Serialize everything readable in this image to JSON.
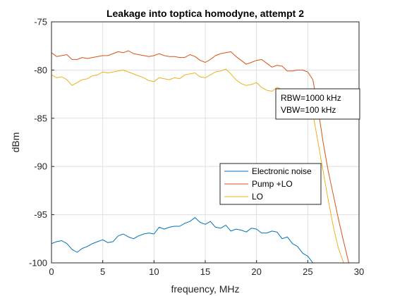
{
  "chart_data": {
    "type": "line",
    "title": "Leakage into toptica homodyne, attempt 2",
    "xlabel": "frequency, MHz",
    "ylabel": "dBm",
    "xlim": [
      0,
      30
    ],
    "ylim": [
      -100,
      -75
    ],
    "xticks": [
      0,
      5,
      10,
      15,
      20,
      25,
      30
    ],
    "yticks": [
      -100,
      -95,
      -90,
      -85,
      -80,
      -75
    ],
    "grid": true,
    "legend": {
      "placement": "center-right"
    },
    "annotation": {
      "lines": [
        "RBW=1000 kHz",
        "VBW=100 kHz"
      ]
    },
    "series": [
      {
        "name": "Electronic noise",
        "color": "#0072BD",
        "x": [
          0,
          0.5,
          1,
          1.5,
          2,
          2.5,
          3,
          3.5,
          4,
          4.5,
          5,
          5.5,
          6,
          6.5,
          7,
          7.5,
          8,
          8.5,
          9,
          9.5,
          10,
          10.5,
          11,
          11.5,
          12,
          12.5,
          13,
          13.5,
          14,
          14.5,
          15,
          15.5,
          16,
          16.5,
          17,
          17.5,
          18,
          18.5,
          19,
          19.5,
          20,
          20.5,
          21,
          21.5,
          22,
          22.5,
          23,
          23.5,
          24,
          24.5,
          25,
          25.5,
          26
        ],
        "y": [
          -98.0,
          -97.8,
          -97.7,
          -98.0,
          -98.6,
          -98.9,
          -98.5,
          -98.3,
          -98.0,
          -97.8,
          -97.6,
          -97.9,
          -97.8,
          -97.2,
          -97.0,
          -97.3,
          -97.5,
          -97.2,
          -97.0,
          -96.9,
          -97.0,
          -96.3,
          -96.5,
          -96.3,
          -96.2,
          -96.2,
          -95.9,
          -95.7,
          -95.3,
          -95.8,
          -96.0,
          -95.7,
          -96.3,
          -96.4,
          -96.1,
          -96.7,
          -96.5,
          -96.6,
          -96.8,
          -96.4,
          -96.5,
          -96.9,
          -96.9,
          -96.7,
          -96.8,
          -97.5,
          -97.3,
          -98.0,
          -98.3,
          -99.0,
          -99.3,
          -100.0,
          -100.6
        ]
      },
      {
        "name": "Pump +LO",
        "color": "#D95319",
        "x": [
          0,
          0.5,
          1,
          1.5,
          2,
          2.5,
          3,
          3.5,
          4,
          4.5,
          5,
          5.5,
          6,
          6.5,
          7,
          7.5,
          8,
          8.5,
          9,
          9.5,
          10,
          10.5,
          11,
          11.5,
          12,
          12.5,
          13,
          13.5,
          14,
          14.5,
          15,
          15.5,
          16,
          16.5,
          17,
          17.5,
          18,
          18.5,
          19,
          19.5,
          20,
          20.5,
          21,
          21.5,
          22,
          22.5,
          23,
          23.5,
          24,
          24.5,
          25,
          25.5,
          26,
          26.5,
          27,
          27.5,
          28,
          28.5,
          29
        ],
        "y": [
          -78.2,
          -78.6,
          -78.5,
          -78.4,
          -78.9,
          -78.9,
          -78.7,
          -78.8,
          -78.7,
          -78.6,
          -78.5,
          -78.5,
          -78.3,
          -78.1,
          -78.2,
          -78.0,
          -78.3,
          -78.4,
          -78.5,
          -78.6,
          -78.5,
          -78.3,
          -78.5,
          -78.6,
          -78.6,
          -78.7,
          -78.7,
          -78.4,
          -78.6,
          -79.0,
          -79.2,
          -78.9,
          -78.5,
          -78.3,
          -78.2,
          -78.1,
          -78.6,
          -79.0,
          -79.4,
          -79.2,
          -79.0,
          -78.9,
          -79.3,
          -79.7,
          -79.5,
          -79.6,
          -80.1,
          -80.1,
          -80.0,
          -80.0,
          -80.2,
          -81.0,
          -84.0,
          -87.5,
          -90.5,
          -93.0,
          -95.5,
          -97.8,
          -100.0
        ]
      },
      {
        "name": "LO",
        "color": "#EDB120",
        "x": [
          0,
          0.5,
          1,
          1.5,
          2,
          2.5,
          3,
          3.5,
          4,
          4.5,
          5,
          5.5,
          6,
          6.5,
          7,
          7.5,
          8,
          8.5,
          9,
          9.5,
          10,
          10.5,
          11,
          11.5,
          12,
          12.5,
          13,
          13.5,
          14,
          14.5,
          15,
          15.5,
          16,
          16.5,
          17,
          17.5,
          18,
          18.5,
          19,
          19.5,
          20,
          20.5,
          21,
          21.5,
          22,
          22.5,
          23,
          23.5,
          24,
          24.5,
          25,
          25.5,
          26,
          26.5,
          27,
          27.5,
          28,
          28.5
        ],
        "y": [
          -80.5,
          -80.8,
          -80.7,
          -81.0,
          -81.6,
          -81.3,
          -81.0,
          -80.9,
          -80.6,
          -80.5,
          -80.2,
          -80.3,
          -80.2,
          -80.1,
          -80.0,
          -80.2,
          -80.4,
          -80.6,
          -80.8,
          -81.1,
          -81.2,
          -80.8,
          -80.9,
          -81.0,
          -80.8,
          -80.9,
          -80.5,
          -80.4,
          -80.3,
          -80.7,
          -80.8,
          -80.5,
          -80.2,
          -80.1,
          -79.9,
          -80.4,
          -81.0,
          -81.4,
          -81.6,
          -81.5,
          -81.3,
          -81.8,
          -82.1,
          -82.2,
          -81.8,
          -82.0,
          -82.3,
          -82.1,
          -82.1,
          -82.5,
          -82.6,
          -84.5,
          -87.5,
          -90.5,
          -93.5,
          -96.3,
          -98.5,
          -100.0
        ]
      }
    ]
  }
}
